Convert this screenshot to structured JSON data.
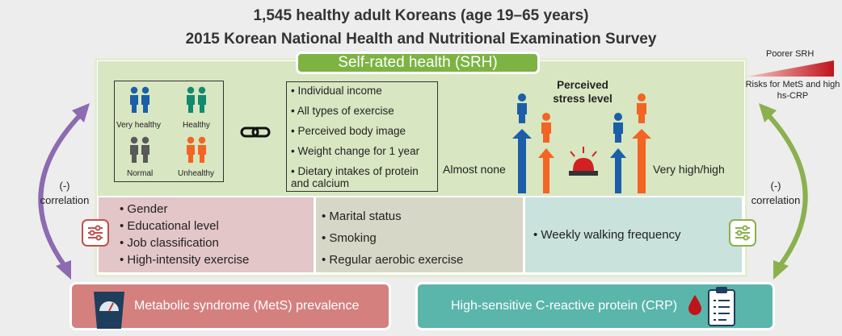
{
  "header": {
    "line1": "1,545 healthy adult Koreans (age 19–65 years)",
    "line2": "2015 Korean National Health and Nutritional Examination Survey"
  },
  "srh": {
    "title": "Self-rated health (SRH)",
    "categories": [
      {
        "label": "Very healthy",
        "color": "#1a5fa8"
      },
      {
        "label": "Healthy",
        "color": "#138a6e"
      },
      {
        "label": "Normal",
        "color": "#595959"
      },
      {
        "label": "Unhealthy",
        "color": "#f26522"
      }
    ]
  },
  "factors": [
    "• Individual income",
    "• All types of exercise",
    "• Perceived body image",
    "• Weight change for 1 year",
    "• Dietary intakes of protein and calcium"
  ],
  "stress": {
    "title": "Perceived stress level",
    "low": "Almost none",
    "high": "Very high/high"
  },
  "groups": [
    {
      "items": [
        "• Gender",
        "• Educational level",
        "• Job classification",
        "• High-intensity exercise"
      ]
    },
    {
      "items": [
        "• Marital status",
        "• Smoking",
        "• Regular aerobic exercise"
      ]
    },
    {
      "items": [
        "• Weekly walking frequency"
      ]
    }
  ],
  "outcomes": {
    "mets": "Metabolic syndrome (MetS) prevalence",
    "crp": "High-sensitive C-reactive protein (CRP)"
  },
  "correlation": {
    "left_sign": "(-)",
    "left_label": "correlation",
    "right_sign": "(-)",
    "right_label": "correlation"
  },
  "legend": {
    "poorer": "Poorer SRH",
    "risk": "Risks for MetS and high hs-CRP"
  },
  "colors": {
    "blue": "#1a5fa8",
    "orange": "#f26522",
    "green": "#7cb342",
    "purple": "#8c6bb1",
    "olive": "#8bb04e",
    "red": "#c0504d",
    "teal": "#5ab5aa",
    "rose": "#d4807f"
  }
}
